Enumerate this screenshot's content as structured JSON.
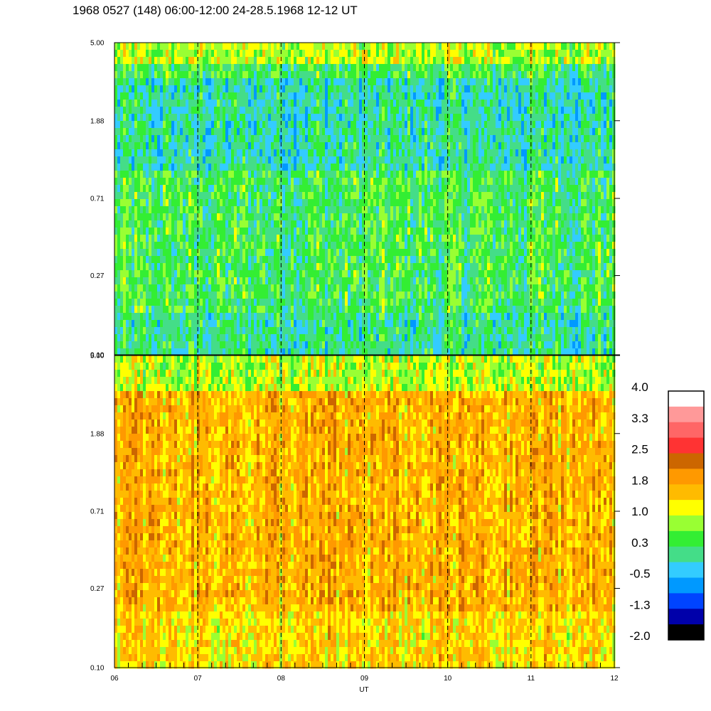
{
  "chart_data": {
    "type": "heatmap",
    "title": "1968 0527 (148) 06:00-12:00 24-28.5.1968  12-12 UT",
    "xlabel": "UT",
    "x_ticks": [
      "06",
      "07",
      "08",
      "09",
      "10",
      "11",
      "12"
    ],
    "x_range": [
      6,
      12
    ],
    "dashed_vlines_at": [
      7,
      8,
      9,
      10,
      11
    ],
    "panels": [
      {
        "name": "upper",
        "y_ticks": [
          "5.00",
          "1.88",
          "0.71",
          "0.27",
          "0.10"
        ],
        "y_range": [
          0.1,
          5.0
        ],
        "y_scale": "log",
        "dominant_level": 0.3
      },
      {
        "name": "lower",
        "y_ticks": [
          "5.00",
          "1.88",
          "0.71",
          "0.27",
          "0.10"
        ],
        "y_range": [
          0.1,
          5.0
        ],
        "y_scale": "log",
        "dominant_level": 1.8
      }
    ],
    "colorbar": {
      "labels": [
        "4.0",
        "3.3",
        "2.5",
        "1.8",
        "1.0",
        "0.3",
        "-0.5",
        "-1.3",
        "-2.0"
      ],
      "colors": [
        "#ffffff",
        "#ff9999",
        "#ff6666",
        "#ff3333",
        "#cc6600",
        "#ff9900",
        "#ffbb00",
        "#ffff00",
        "#99ff33",
        "#33ee33",
        "#44dd88",
        "#33ccff",
        "#0099ff",
        "#0044ff",
        "#0000aa",
        "#000000"
      ]
    }
  }
}
